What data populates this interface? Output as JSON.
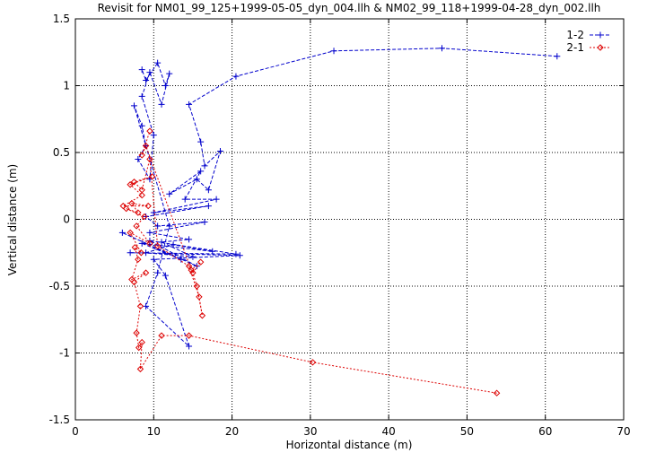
{
  "chart_data": {
    "type": "line",
    "title": "Revisit for NM01_99_125+1999-05-05_dyn_004.llh & NM02_99_118+1999-04-28_dyn_002.llh",
    "xlabel": "Horizontal distance (m)",
    "ylabel": "Vertical distance (m)",
    "xlim": [
      0,
      70
    ],
    "ylim": [
      -1.5,
      1.5
    ],
    "xticks": [
      "0",
      "10",
      "20",
      "30",
      "40",
      "50",
      "60",
      "70"
    ],
    "yticks": [
      "-1.5",
      "-1",
      "-0.5",
      "0",
      "0.5",
      "1",
      "1.5"
    ],
    "grid": true,
    "legend_position": "top-right",
    "series": [
      {
        "name": "1-2",
        "color": "#0000cc",
        "line_style": "dashed",
        "marker": "plus",
        "x": [
          61.5,
          46.8,
          33.0,
          20.5,
          14.5,
          16.0,
          16.5,
          18.5,
          17.0,
          15.5,
          12.0,
          16.0,
          14.0,
          18.0,
          10.0,
          17.0,
          9.0,
          10.5,
          16.5,
          9.5,
          14.5,
          11.0,
          15.0,
          9.0,
          12.5,
          17.5,
          8.5,
          13.5,
          6.0,
          15.5,
          9.5,
          20.5,
          7.0,
          21.0,
          10.0,
          11.5,
          14.5,
          9.0,
          10.5,
          12.0,
          7.5,
          8.5,
          9.0,
          8.0,
          9.5,
          10.0,
          8.5,
          9.5,
          11.0,
          12.0,
          11.5,
          10.5,
          9.0,
          8.5
        ],
        "y": [
          1.22,
          1.28,
          1.26,
          1.07,
          0.86,
          0.58,
          0.4,
          0.51,
          0.22,
          0.3,
          0.19,
          0.36,
          0.15,
          0.15,
          0.05,
          0.1,
          0.02,
          -0.05,
          -0.02,
          -0.1,
          -0.15,
          -0.17,
          -0.28,
          -0.25,
          -0.19,
          -0.24,
          -0.18,
          -0.3,
          -0.1,
          -0.35,
          -0.16,
          -0.26,
          -0.25,
          -0.27,
          -0.3,
          -0.42,
          -0.95,
          -0.65,
          -0.4,
          -0.05,
          0.85,
          0.7,
          0.55,
          0.45,
          0.3,
          0.63,
          0.92,
          1.1,
          0.86,
          1.09,
          1.0,
          1.17,
          1.04,
          1.12
        ]
      },
      {
        "name": "2-1",
        "color": "#dd0000",
        "line_style": "dotted",
        "marker": "diamond",
        "x": [
          53.8,
          30.3,
          14.5,
          11.0,
          8.3,
          8.5,
          8.1,
          7.8,
          8.3,
          7.5,
          9.0,
          7.2,
          8.0,
          7.6,
          8.4,
          7.0,
          9.5,
          7.8,
          8.8,
          6.5,
          8.0,
          7.2,
          9.3,
          6.1,
          8.5,
          7.0,
          9.8,
          7.5,
          8.5,
          9.5,
          10.5,
          14.5,
          15.8,
          16.2,
          15.5,
          15.0,
          16.0,
          14.8,
          9.0,
          8.5,
          9.5
        ],
        "y": [
          -1.3,
          -1.07,
          -0.87,
          -0.87,
          -1.12,
          -0.92,
          -0.96,
          -0.85,
          -0.65,
          -0.47,
          -0.4,
          -0.45,
          -0.3,
          -0.21,
          -0.25,
          -0.1,
          -0.18,
          -0.05,
          0.02,
          0.08,
          0.05,
          0.12,
          0.1,
          0.1,
          0.18,
          0.26,
          0.32,
          0.28,
          0.22,
          0.45,
          -0.2,
          -0.35,
          -0.58,
          -0.72,
          -0.5,
          -0.4,
          -0.32,
          -0.38,
          0.55,
          0.48,
          0.66
        ]
      }
    ]
  }
}
